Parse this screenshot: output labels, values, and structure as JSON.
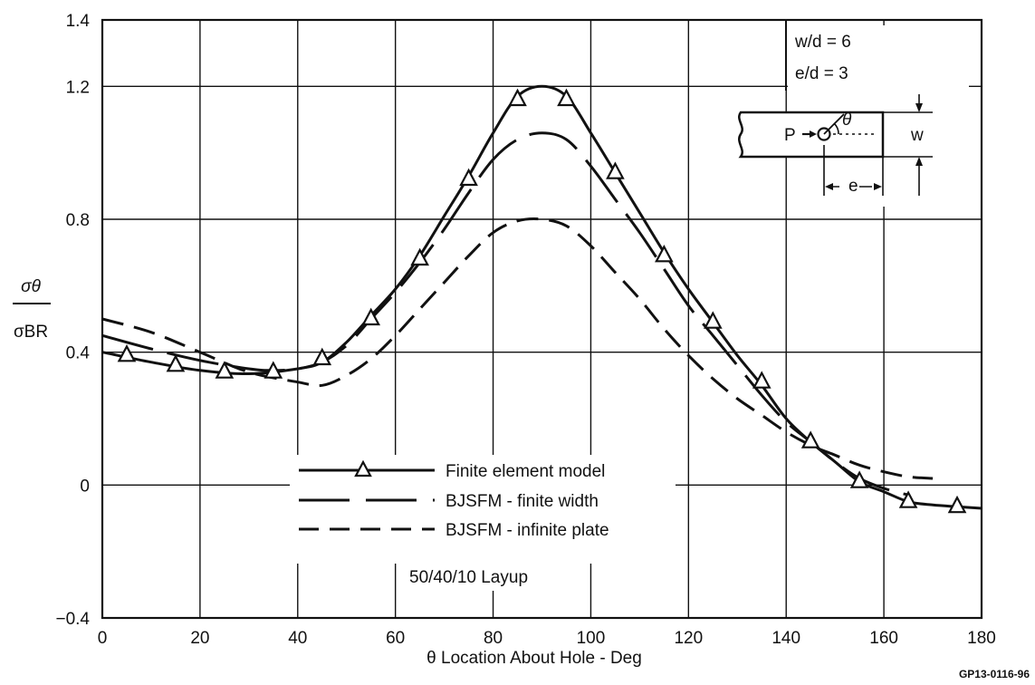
{
  "chart_data": {
    "type": "line",
    "xlabel": "θ  Location About Hole - Deg",
    "ylabel": {
      "numerator": "σθ",
      "denominator": "σBR"
    },
    "xlim": [
      0,
      180
    ],
    "ylim": [
      -0.4,
      1.4
    ],
    "x_ticks": [
      "0",
      "20",
      "40",
      "60",
      "80",
      "100",
      "120",
      "140",
      "160",
      "180"
    ],
    "y_ticks": [
      "−0.4",
      "0",
      "0.4",
      "0.8",
      "1.2",
      "1.4"
    ],
    "grid": true,
    "legend_position": "bottom-center",
    "annotations": {
      "ratios": [
        "w/d = 6",
        "e/d = 3"
      ],
      "layup": "50/40/10 Layup",
      "figure_id": "GP13-0116-96",
      "sketch": {
        "load": "P",
        "angle": "θ",
        "width": "w",
        "edge": "e"
      }
    },
    "series": [
      {
        "name": "Finite element model",
        "style": "solid-with-triangles",
        "color": "#111111",
        "x": [
          0,
          10,
          20,
          30,
          40,
          45,
          50,
          55,
          60,
          65,
          70,
          75,
          80,
          85,
          90,
          95,
          100,
          105,
          110,
          115,
          120,
          125,
          130,
          135,
          140,
          145,
          150,
          155,
          160,
          165,
          170,
          175,
          180
        ],
        "y": [
          0.4,
          0.37,
          0.345,
          0.335,
          0.35,
          0.37,
          0.43,
          0.51,
          0.59,
          0.69,
          0.81,
          0.93,
          1.06,
          1.17,
          1.2,
          1.17,
          1.06,
          0.94,
          0.82,
          0.7,
          0.59,
          0.49,
          0.39,
          0.3,
          0.2,
          0.13,
          0.07,
          0.01,
          -0.02,
          -0.05,
          -0.06,
          -0.065,
          -0.07
        ],
        "markers": {
          "x": [
            5,
            15,
            25,
            35,
            45,
            55,
            65,
            75,
            85,
            95,
            105,
            115,
            125,
            135,
            145,
            155,
            165,
            175
          ],
          "y": [
            0.39,
            0.36,
            0.34,
            0.34,
            0.38,
            0.5,
            0.68,
            0.92,
            1.16,
            1.16,
            0.94,
            0.69,
            0.49,
            0.31,
            0.13,
            0.01,
            -0.05,
            -0.065
          ]
        }
      },
      {
        "name": "BJSFM - finite width",
        "style": "long-dash",
        "color": "#111111",
        "x": [
          0,
          10,
          20,
          30,
          35,
          40,
          45,
          50,
          55,
          60,
          65,
          70,
          75,
          80,
          85,
          90,
          95,
          100,
          105,
          110,
          115,
          120,
          125,
          130,
          135,
          140,
          145,
          150,
          155,
          160,
          165
        ],
        "y": [
          0.45,
          0.41,
          0.375,
          0.35,
          0.345,
          0.35,
          0.37,
          0.42,
          0.5,
          0.58,
          0.67,
          0.77,
          0.88,
          0.98,
          1.04,
          1.06,
          1.04,
          0.96,
          0.86,
          0.76,
          0.65,
          0.54,
          0.45,
          0.36,
          0.27,
          0.19,
          0.13,
          0.07,
          0.02,
          -0.01,
          -0.03
        ]
      },
      {
        "name": "BJSFM - infinite plate",
        "style": "short-dash",
        "color": "#111111",
        "x": [
          0,
          10,
          20,
          30,
          40,
          45,
          50,
          55,
          60,
          65,
          70,
          75,
          80,
          85,
          90,
          95,
          100,
          105,
          110,
          115,
          120,
          125,
          130,
          135,
          140,
          145,
          150,
          155,
          160,
          165,
          170
        ],
        "y": [
          0.5,
          0.46,
          0.4,
          0.34,
          0.31,
          0.3,
          0.33,
          0.38,
          0.45,
          0.53,
          0.61,
          0.69,
          0.76,
          0.795,
          0.8,
          0.78,
          0.72,
          0.64,
          0.56,
          0.47,
          0.39,
          0.32,
          0.26,
          0.21,
          0.16,
          0.12,
          0.09,
          0.06,
          0.04,
          0.025,
          0.02
        ]
      }
    ]
  }
}
